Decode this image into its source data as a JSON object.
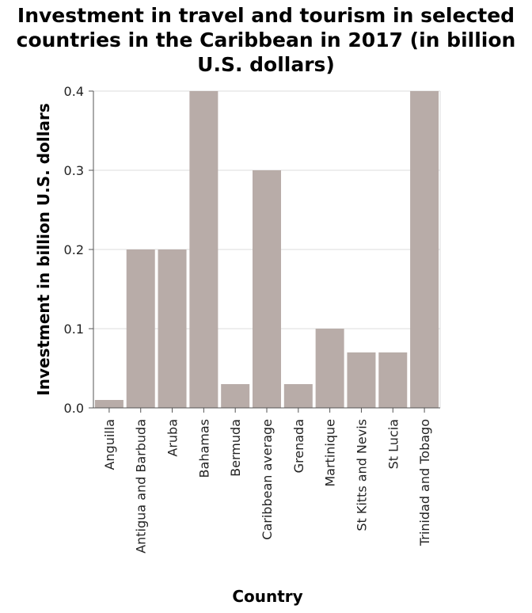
{
  "chart_data": {
    "type": "bar",
    "title": "Investment in travel and tourism in selected countries in the Caribbean in 2017 (in billion U.S. dollars)",
    "title_lines": [
      "Investment in travel and tourism in selected",
      "countries in the Caribbean in 2017 (in billion",
      "U.S. dollars)"
    ],
    "xlabel": "Country",
    "ylabel": "Investment in billion U.S. dollars",
    "categories": [
      "Anguilla",
      "Antigua and Barbuda",
      "Aruba",
      "Bahamas",
      "Bermuda",
      "Caribbean average",
      "Grenada",
      "Martinique",
      "St Kitts and Nevis",
      "St Lucia",
      "Trinidad and Tobago"
    ],
    "values": [
      0.01,
      0.2,
      0.2,
      0.4,
      0.03,
      0.3,
      0.03,
      0.1,
      0.07,
      0.07,
      0.4
    ],
    "ylim": [
      0,
      0.4
    ],
    "yticks": [
      "0.0",
      "0.1",
      "0.2",
      "0.3",
      "0.4"
    ],
    "grid": true,
    "legend": "none",
    "colors": {
      "bar": "#b8aca8",
      "grid": "#dddddd",
      "axis": "#555555"
    }
  }
}
